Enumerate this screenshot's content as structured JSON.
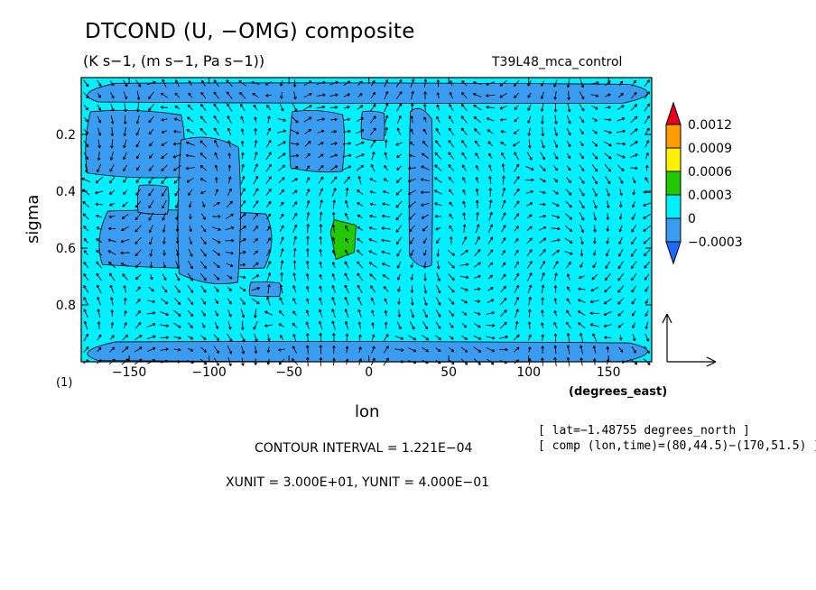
{
  "figure": {
    "title": "DTCOND (U, −OMG) composite",
    "units": "(K s−1, (m s−1, Pa s−1))",
    "run_name": "T39L48_mca_control",
    "panel_index": "(1)",
    "lat_info": "[ lat=−1.48755 degrees_north ]",
    "comp_info": "[ comp (lon,time)=(80,44.5)−(170,51.5) ]",
    "contour_interval": "CONTOUR INTERVAL = 1.221E−04",
    "unit_vectors": "XUNIT = 3.000E+01, YUNIT = 4.000E−01"
  },
  "chart_data": {
    "type": "heatmap",
    "xlabel": "lon",
    "x_units": "(degrees_east)",
    "ylabel": "sigma",
    "xlim": [
      -180,
      177
    ],
    "ylim": [
      1.0,
      0.0
    ],
    "x_ticks": [
      -150,
      -100,
      -50,
      0,
      50,
      100,
      150
    ],
    "x_tick_labels": [
      "−150",
      "−100",
      "−50",
      "0",
      "50",
      "100",
      "150"
    ],
    "y_ticks": [
      0.2,
      0.4,
      0.6,
      0.8
    ],
    "y_tick_labels": [
      "0.2",
      "0.4",
      "0.6",
      "0.8"
    ],
    "colorbar": {
      "levels": [
        0.0012,
        0.0009,
        0.0006,
        0.0003,
        0,
        -0.0003
      ],
      "level_labels": [
        "0.0012",
        "0.0009",
        "0.0006",
        "0.0003",
        "0",
        "−0.0003"
      ],
      "colors": [
        "#e8001c",
        "#ff9c00",
        "#fff200",
        "#22c800",
        "#00f0ff",
        "#3a9cf0",
        "#1a6cff"
      ]
    },
    "background_color": "#00f0ff",
    "negative_regions": [
      {
        "lon": [
          -178,
          -115
        ],
        "sigma": [
          0.12,
          0.35
        ]
      },
      {
        "lon": [
          -170,
          -60
        ],
        "sigma": [
          0.47,
          0.67
        ]
      },
      {
        "lon": [
          -120,
          -80
        ],
        "sigma": [
          0.22,
          0.72
        ]
      },
      {
        "lon": [
          -145,
          -125
        ],
        "sigma": [
          0.38,
          0.48
        ]
      },
      {
        "lon": [
          -50,
          -15
        ],
        "sigma": [
          0.12,
          0.33
        ]
      },
      {
        "lon": [
          -5,
          10
        ],
        "sigma": [
          0.12,
          0.22
        ]
      },
      {
        "lon": [
          -75,
          -55
        ],
        "sigma": [
          0.72,
          0.77
        ]
      },
      {
        "lon": [
          25,
          40
        ],
        "sigma": [
          0.12,
          0.66
        ]
      },
      {
        "lon": [
          -180,
          177
        ],
        "sigma": [
          0.02,
          0.09
        ]
      },
      {
        "lon": [
          -180,
          177
        ],
        "sigma": [
          0.93,
          1.0
        ]
      }
    ],
    "positive_regions": [
      {
        "lon": [
          -24,
          -8
        ],
        "sigma": [
          0.5,
          0.64
        ],
        "level": "0.0003"
      }
    ],
    "vector_field": {
      "description": "composite (U, -OMG) wind vectors",
      "reference_x": 30,
      "reference_y": 0.4
    }
  }
}
